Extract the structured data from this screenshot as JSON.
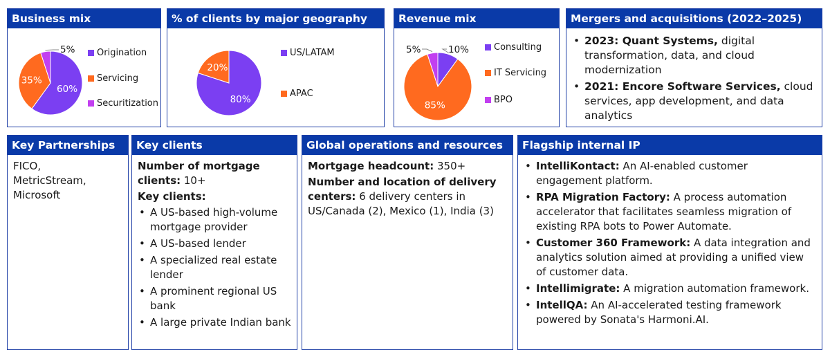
{
  "business_mix": {
    "title": "Business mix",
    "slices": [
      {
        "label": "Origination",
        "value": 60,
        "pct": "60%",
        "color": "#7b3ff2"
      },
      {
        "label": "Servicing",
        "value": 35,
        "pct": "35%",
        "color": "#ff6a1f"
      },
      {
        "label": "Securitization",
        "value": 5,
        "pct": "5%",
        "color": "#c23ff0"
      }
    ]
  },
  "geography": {
    "title": "% of clients by major geography",
    "slices": [
      {
        "label": "US/LATAM",
        "value": 80,
        "pct": "80%",
        "color": "#7b3ff2"
      },
      {
        "label": "APAC",
        "value": 20,
        "pct": "20%",
        "color": "#ff6a1f"
      }
    ]
  },
  "revenue_mix": {
    "title": "Revenue mix",
    "slices": [
      {
        "label": "Consulting",
        "value": 10,
        "pct": "10%",
        "color": "#7b3ff2"
      },
      {
        "label": "IT Servicing",
        "value": 85,
        "pct": "85%",
        "color": "#ff6a1f"
      },
      {
        "label": "BPO",
        "value": 5,
        "pct": "5%",
        "color": "#c23ff0"
      }
    ]
  },
  "chart_data": [
    {
      "type": "pie",
      "title": "Business mix",
      "categories": [
        "Origination",
        "Servicing",
        "Securitization"
      ],
      "values": [
        60,
        35,
        5
      ],
      "legend": "right"
    },
    {
      "type": "pie",
      "title": "% of clients by major geography",
      "categories": [
        "US/LATAM",
        "APAC"
      ],
      "values": [
        80,
        20
      ],
      "legend": "right"
    },
    {
      "type": "pie",
      "title": "Revenue mix",
      "categories": [
        "Consulting",
        "IT Servicing",
        "BPO"
      ],
      "values": [
        10,
        85,
        5
      ],
      "legend": "right"
    }
  ],
  "mna": {
    "title": "Mergers and acquisitions (2022–2025)",
    "items": [
      {
        "bold": "2023: Quant Systems,",
        "text": " digital transformation, data, and cloud modernization"
      },
      {
        "bold": "2021: Encore Software Services,",
        "text": " cloud services, app development, and data analytics"
      }
    ]
  },
  "partnerships": {
    "title": "Key Partnerships",
    "text": "FICO, MetricStream, Microsoft"
  },
  "key_clients": {
    "title": "Key clients",
    "count_label": "Number of mortgage clients:",
    "count_value": " 10+",
    "clients_label": "Key clients:",
    "items": [
      "A US-based high-volume mortgage provider",
      "A US-based lender",
      "A specialized real estate lender",
      "A prominent regional US bank",
      "A large private Indian bank"
    ]
  },
  "operations": {
    "title": "Global operations and resources",
    "headcount_label": "Mortgage headcount:",
    "headcount_value": " 350+",
    "centers_label": "Number and location of delivery centers:",
    "centers_value": " 6 delivery centers in US/Canada (2), Mexico (1), India (3)"
  },
  "ip": {
    "title": "Flagship internal IP",
    "items": [
      {
        "bold": "IntelliKontact:",
        "text": " An AI-enabled customer engagement platform."
      },
      {
        "bold": "RPA Migration Factory:",
        "text": " A process automation accelerator that facilitates seamless migration of existing RPA bots to Power Automate."
      },
      {
        "bold": "Customer 360 Framework:",
        "text": " A data integration and analytics solution aimed at providing a unified view of customer data."
      },
      {
        "bold": "Intellimigrate:",
        "text": " A migration automation framework."
      },
      {
        "bold": "IntellQA:",
        "text": " An AI-accelerated testing framework powered by Sonata's Harmoni.AI."
      }
    ]
  }
}
